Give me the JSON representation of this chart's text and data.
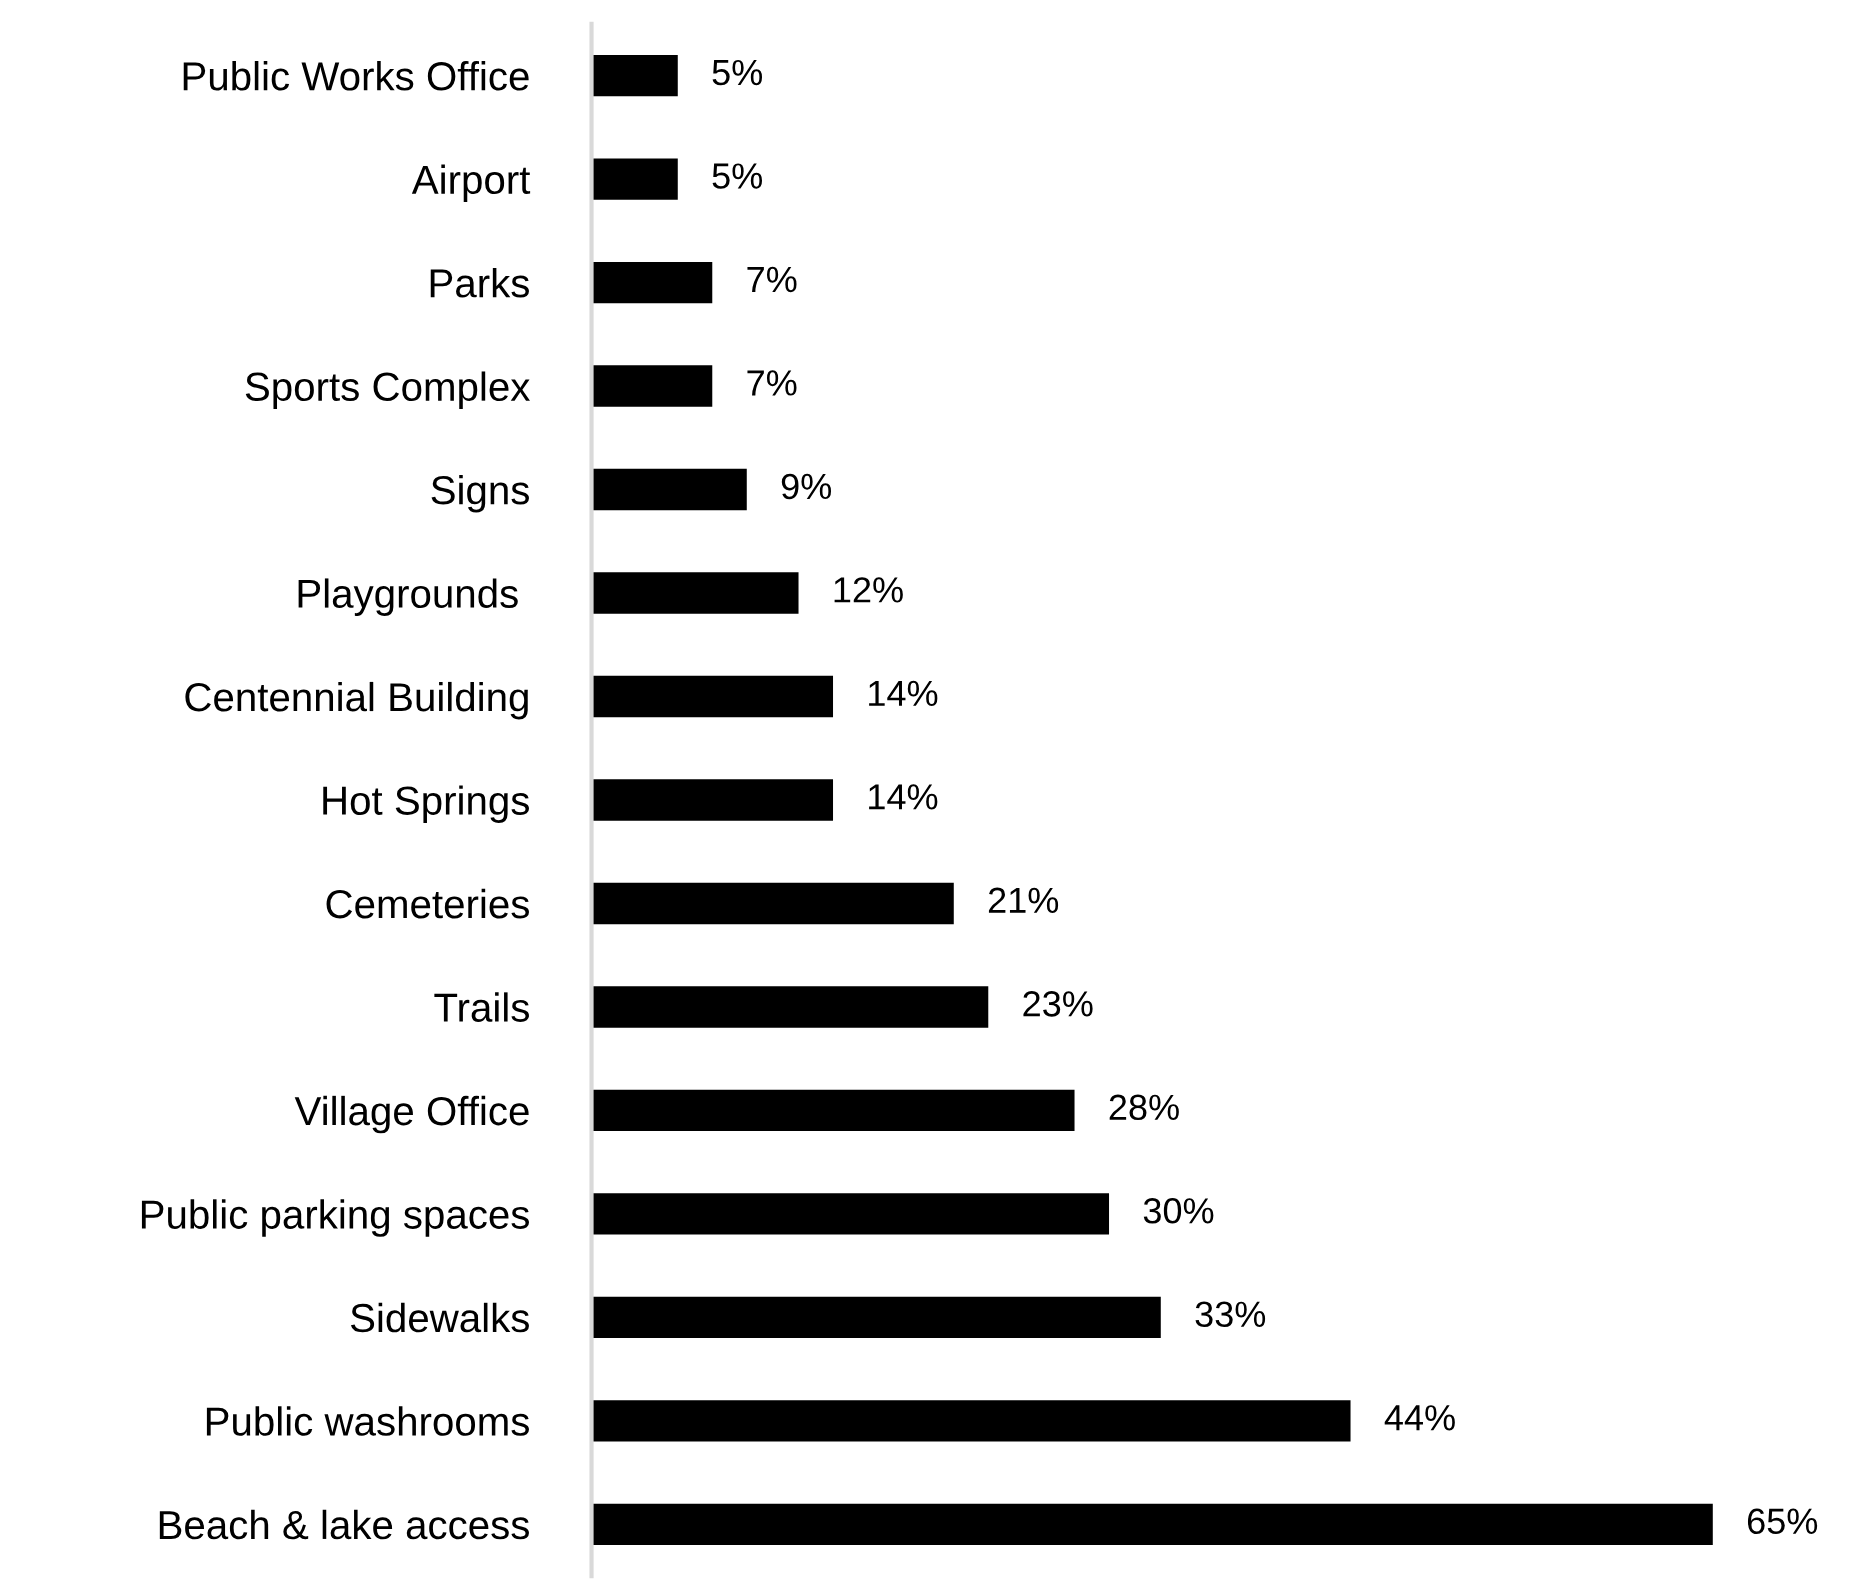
{
  "chart_data": {
    "type": "bar",
    "orientation": "horizontal",
    "categories": [
      "Public Works Office",
      "Airport",
      "Parks",
      "Sports Complex",
      "Signs",
      "Playgrounds ",
      "Centennial Building",
      "Hot Springs",
      "Cemeteries",
      "Trails",
      "Village Office",
      "Public parking spaces",
      "Sidewalks",
      "Public washrooms",
      "Beach & lake access"
    ],
    "values": [
      5,
      5,
      7,
      7,
      9,
      12,
      14,
      14,
      21,
      23,
      28,
      30,
      33,
      44,
      65
    ],
    "value_labels": [
      "5%",
      "5%",
      "7%",
      "7%",
      "9%",
      "12%",
      "14%",
      "14%",
      "21%",
      "23%",
      "28%",
      "30%",
      "33%",
      "44%",
      "65%"
    ],
    "color": "#000000",
    "grid": false,
    "legend": false,
    "tick_labels": "y"
  }
}
